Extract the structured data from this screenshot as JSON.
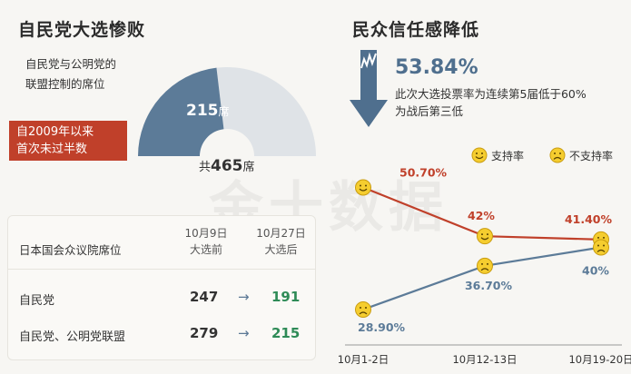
{
  "watermark": "金十数据",
  "left_panel": {
    "title": "自民党大选惨败",
    "desc_line1": "自民党与公明党的",
    "desc_line2": "联盟控制的席位",
    "callout_line1": "自2009年以来",
    "callout_line2": "首次未过半数",
    "seats_value": "215",
    "seats_unit": "席",
    "total_prefix": "共",
    "total_value": "465",
    "total_unit": "席",
    "colors": {
      "coalition": "#5c7b98",
      "rest": "#dfe3e7",
      "callout": "#c0402a"
    }
  },
  "table": {
    "header_label": "日本国会众议院席位",
    "col1_line1": "10月9日",
    "col1_line2": "大选前",
    "col2_line1": "10月27日",
    "col2_line2": "大选后",
    "arrow": "→",
    "rows": [
      {
        "name": "自民党",
        "before": "247",
        "after": "191"
      },
      {
        "name": "自民党、公明党联盟",
        "before": "279",
        "after": "215"
      }
    ]
  },
  "right_panel": {
    "title": "民众信任感降低",
    "highlight_value": "53.84%",
    "highlight_line1": "此次大选投票率为连续第5届低于60%",
    "highlight_line2": "为战后第三低",
    "legend": [
      {
        "label": "支持率",
        "icon": "smile-icon"
      },
      {
        "label": "不支持率",
        "icon": "frown-icon"
      }
    ],
    "labels": {
      "approve": [
        "50.70%",
        "42%",
        "41.40%"
      ],
      "disapprove": [
        "28.90%",
        "36.70%",
        "40%"
      ]
    }
  },
  "chart_data": [
    {
      "type": "pie",
      "title": "",
      "slices": [
        {
          "name": "自民党与公明党的联盟控制的席位",
          "value": 215
        },
        {
          "name": "",
          "value": 250
        }
      ],
      "total": 465
    },
    {
      "type": "line",
      "title": "",
      "x": [
        "10月1-2日",
        "10月12-13日",
        "10月19-20日"
      ],
      "series": [
        {
          "name": "支持率",
          "values": [
            50.7,
            42,
            41.4
          ],
          "color": "#c0402a"
        },
        {
          "name": "不支持率",
          "values": [
            28.9,
            36.7,
            40
          ],
          "color": "#5c7b98"
        }
      ],
      "ylim": [
        25,
        55
      ],
      "legend_placement": "top-right"
    }
  ]
}
